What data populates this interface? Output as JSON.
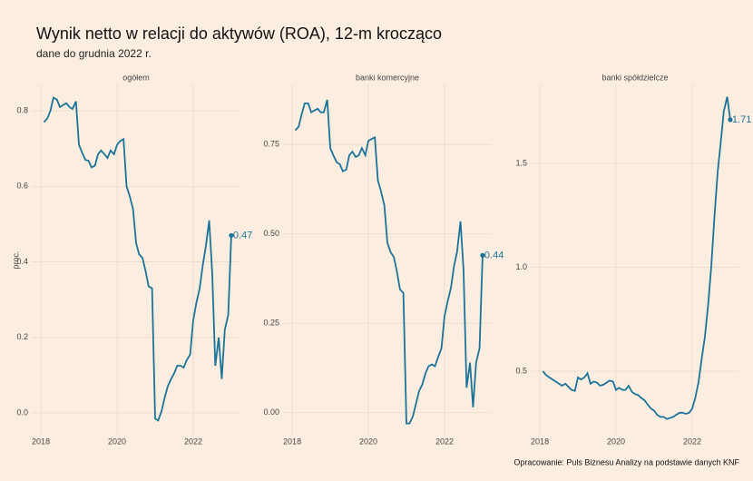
{
  "title": "Wynik netto w relacji do aktywów (ROA), 12-m krocząco",
  "subtitle": "dane do grudnia 2022 r.",
  "caption": "Opracowanie: Puls Biznesu Analizy na podstawie danych KNF",
  "chart_data": [
    {
      "type": "line",
      "title": "ogółem",
      "ylabel": "proc.",
      "grid": true,
      "xlim": [
        2017.76,
        2023.24
      ],
      "xticks": [
        2018,
        2020,
        2022
      ],
      "ylim": [
        -0.06,
        0.87
      ],
      "yticks": [
        {
          "value": 0,
          "label": "0.0"
        },
        0.2,
        0.4,
        0.6,
        0.8
      ],
      "x": [
        2018.08,
        2018.17,
        2018.25,
        2018.33,
        2018.42,
        2018.5,
        2018.58,
        2018.67,
        2018.75,
        2018.83,
        2018.92,
        2019,
        2019.08,
        2019.17,
        2019.25,
        2019.33,
        2019.42,
        2019.5,
        2019.58,
        2019.67,
        2019.75,
        2019.83,
        2019.92,
        2020,
        2020.08,
        2020.17,
        2020.25,
        2020.33,
        2020.42,
        2020.5,
        2020.58,
        2020.67,
        2020.75,
        2020.83,
        2020.92,
        2021,
        2021.08,
        2021.17,
        2021.25,
        2021.33,
        2021.42,
        2021.5,
        2021.58,
        2021.67,
        2021.75,
        2021.83,
        2021.92,
        2022,
        2022.08,
        2022.17,
        2022.25,
        2022.33,
        2022.42,
        2022.5,
        2022.58,
        2022.67,
        2022.75,
        2022.83,
        2022.92,
        2023
      ],
      "series": [
        {
          "color": "#1b7399",
          "values": [
            0.77,
            0.78,
            0.8,
            0.835,
            0.83,
            0.81,
            0.815,
            0.82,
            0.81,
            0.805,
            0.825,
            0.71,
            0.69,
            0.67,
            0.668,
            0.65,
            0.655,
            0.685,
            0.695,
            0.685,
            0.675,
            0.695,
            0.685,
            0.71,
            0.72,
            0.725,
            0.6,
            0.575,
            0.54,
            0.45,
            0.42,
            0.41,
            0.375,
            0.335,
            0.33,
            -0.015,
            -0.02,
            0.005,
            0.04,
            0.07,
            0.09,
            0.105,
            0.125,
            0.125,
            0.12,
            0.14,
            0.155,
            0.245,
            0.29,
            0.33,
            0.39,
            0.44,
            0.51,
            0.37,
            0.125,
            0.2,
            0.09,
            0.22,
            0.26,
            0.47
          ],
          "value_labels": [
            null,
            null,
            null,
            null,
            null,
            null,
            null,
            null,
            null,
            null,
            null,
            null,
            null,
            null,
            null,
            null,
            null,
            null,
            null,
            null,
            null,
            null,
            null,
            null,
            null,
            null,
            null,
            null,
            null,
            null,
            null,
            null,
            null,
            null,
            null,
            null,
            null,
            null,
            null,
            null,
            null,
            null,
            null,
            null,
            null,
            null,
            null,
            null,
            null,
            null,
            null,
            null,
            null,
            null,
            null,
            null,
            null,
            null,
            null,
            "0.47"
          ]
        }
      ]
    },
    {
      "type": "line",
      "title": "banki komercyjne",
      "grid": true,
      "xlim": [
        2017.76,
        2023.24
      ],
      "xticks": [
        2018,
        2020,
        2022
      ],
      "ylim": [
        -0.064,
        0.918
      ],
      "yticks": [
        {
          "value": 0,
          "label": "0.00"
        },
        0.25,
        {
          "value": 0.5,
          "label": "0.50"
        },
        0.75
      ],
      "x": [
        2018.08,
        2018.17,
        2018.25,
        2018.33,
        2018.42,
        2018.5,
        2018.58,
        2018.67,
        2018.75,
        2018.83,
        2018.92,
        2019,
        2019.08,
        2019.17,
        2019.25,
        2019.33,
        2019.42,
        2019.5,
        2019.58,
        2019.67,
        2019.75,
        2019.83,
        2019.92,
        2020,
        2020.08,
        2020.17,
        2020.25,
        2020.33,
        2020.42,
        2020.5,
        2020.58,
        2020.67,
        2020.75,
        2020.83,
        2020.92,
        2021,
        2021.08,
        2021.17,
        2021.25,
        2021.33,
        2021.42,
        2021.5,
        2021.58,
        2021.67,
        2021.75,
        2021.83,
        2021.92,
        2022,
        2022.08,
        2022.17,
        2022.25,
        2022.33,
        2022.42,
        2022.5,
        2022.58,
        2022.67,
        2022.75,
        2022.83,
        2022.92,
        2023
      ],
      "series": [
        {
          "color": "#1b7399",
          "values": [
            0.79,
            0.8,
            0.835,
            0.865,
            0.865,
            0.84,
            0.845,
            0.85,
            0.84,
            0.84,
            0.875,
            0.74,
            0.72,
            0.7,
            0.695,
            0.675,
            0.68,
            0.72,
            0.73,
            0.715,
            0.72,
            0.74,
            0.72,
            0.76,
            0.765,
            0.77,
            0.65,
            0.62,
            0.58,
            0.475,
            0.45,
            0.435,
            0.395,
            0.345,
            0.335,
            -0.03,
            -0.03,
            -0.01,
            0.025,
            0.06,
            0.08,
            0.11,
            0.13,
            0.135,
            0.13,
            0.155,
            0.18,
            0.27,
            0.31,
            0.35,
            0.41,
            0.45,
            0.535,
            0.4,
            0.07,
            0.14,
            0.015,
            0.14,
            0.18,
            0.44
          ],
          "value_labels": [
            null,
            null,
            null,
            null,
            null,
            null,
            null,
            null,
            null,
            null,
            null,
            null,
            null,
            null,
            null,
            null,
            null,
            null,
            null,
            null,
            null,
            null,
            null,
            null,
            null,
            null,
            null,
            null,
            null,
            null,
            null,
            null,
            null,
            null,
            null,
            null,
            null,
            null,
            null,
            null,
            null,
            null,
            null,
            null,
            null,
            null,
            null,
            null,
            null,
            null,
            null,
            null,
            null,
            null,
            null,
            null,
            null,
            null,
            null,
            "0.44"
          ]
        }
      ]
    },
    {
      "type": "line",
      "title": "banki spółdzielcze",
      "grid": true,
      "xlim": [
        2017.76,
        2023.24
      ],
      "xticks": [
        2018,
        2020,
        2022
      ],
      "ylim": [
        0.19,
        1.88
      ],
      "yticks": [
        0.5,
        {
          "value": 1,
          "label": "1.0"
        },
        1.5
      ],
      "x": [
        2018.08,
        2018.17,
        2018.25,
        2018.33,
        2018.42,
        2018.5,
        2018.58,
        2018.67,
        2018.75,
        2018.83,
        2018.92,
        2019,
        2019.08,
        2019.17,
        2019.25,
        2019.33,
        2019.42,
        2019.5,
        2019.58,
        2019.67,
        2019.75,
        2019.83,
        2019.92,
        2020,
        2020.08,
        2020.17,
        2020.25,
        2020.33,
        2020.42,
        2020.5,
        2020.58,
        2020.67,
        2020.75,
        2020.83,
        2020.92,
        2021,
        2021.08,
        2021.17,
        2021.25,
        2021.33,
        2021.42,
        2021.5,
        2021.58,
        2021.67,
        2021.75,
        2021.83,
        2021.92,
        2022,
        2022.08,
        2022.17,
        2022.25,
        2022.33,
        2022.42,
        2022.5,
        2022.58,
        2022.67,
        2022.75,
        2022.83,
        2022.92,
        2023
      ],
      "series": [
        {
          "color": "#1b7399",
          "values": [
            0.5,
            0.48,
            0.47,
            0.46,
            0.45,
            0.44,
            0.43,
            0.44,
            0.425,
            0.41,
            0.405,
            0.47,
            0.46,
            0.47,
            0.49,
            0.44,
            0.45,
            0.445,
            0.43,
            0.435,
            0.445,
            0.455,
            0.45,
            0.41,
            0.42,
            0.41,
            0.41,
            0.43,
            0.4,
            0.39,
            0.385,
            0.37,
            0.36,
            0.34,
            0.32,
            0.31,
            0.29,
            0.28,
            0.28,
            0.27,
            0.275,
            0.28,
            0.29,
            0.3,
            0.3,
            0.295,
            0.3,
            0.32,
            0.37,
            0.45,
            0.56,
            0.66,
            0.82,
            1.0,
            1.23,
            1.46,
            1.6,
            1.75,
            1.82,
            1.71
          ],
          "value_labels": [
            null,
            null,
            null,
            null,
            null,
            null,
            null,
            null,
            null,
            null,
            null,
            null,
            null,
            null,
            null,
            null,
            null,
            null,
            null,
            null,
            null,
            null,
            null,
            null,
            null,
            null,
            null,
            null,
            null,
            null,
            null,
            null,
            null,
            null,
            null,
            null,
            null,
            null,
            null,
            null,
            null,
            null,
            null,
            null,
            null,
            null,
            null,
            null,
            null,
            null,
            null,
            null,
            null,
            null,
            null,
            null,
            null,
            null,
            null,
            "1.71"
          ]
        }
      ]
    }
  ]
}
